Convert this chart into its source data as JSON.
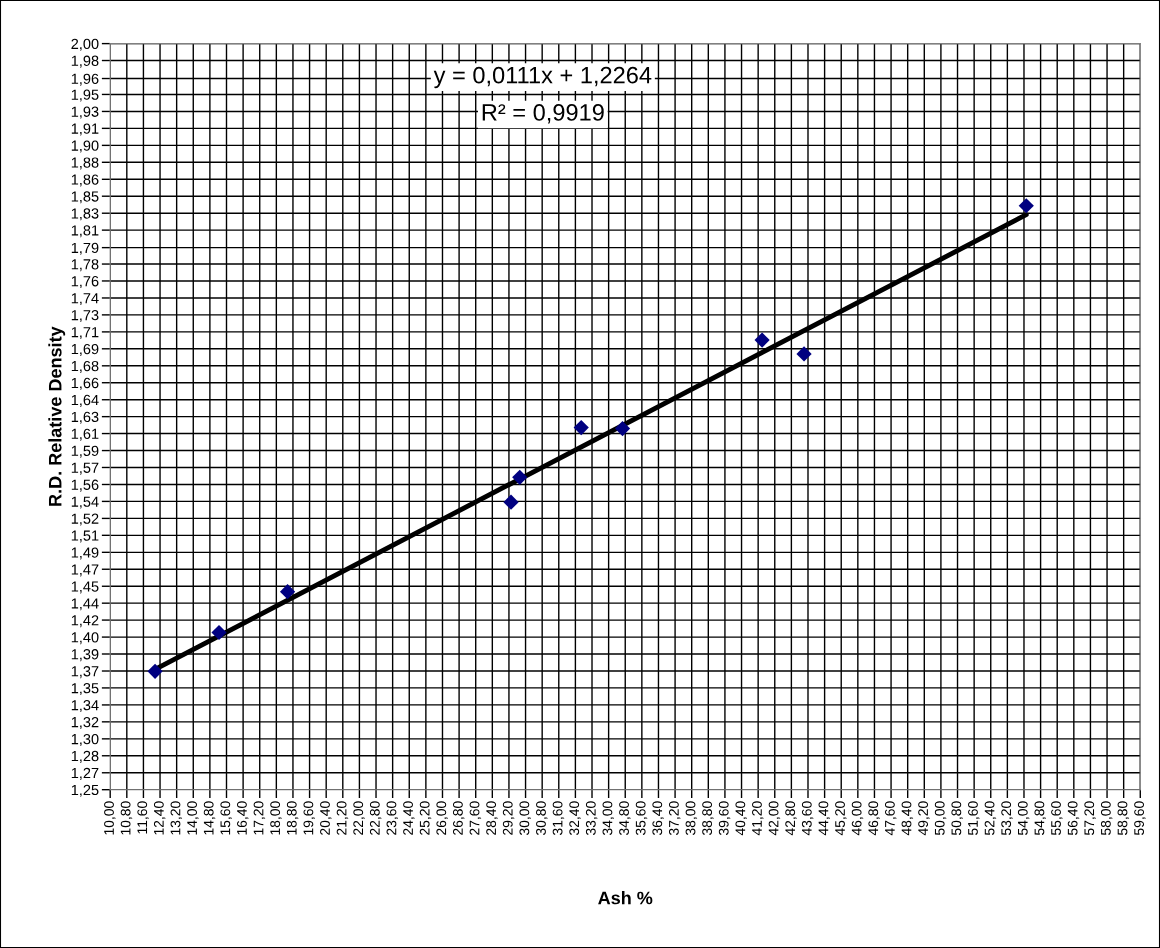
{
  "chart_data": {
    "type": "scatter",
    "xlabel": "Ash %",
    "ylabel": "R.D. Relative Density",
    "annotations": [
      "y = 0,0111x + 1,2264",
      "R² = 0,9919"
    ],
    "series": [
      {
        "color": "#000080",
        "marker": "diamond",
        "x": [
          12.16,
          15.24,
          18.54,
          29.3,
          29.72,
          32.68,
          34.67,
          41.39,
          43.41,
          54.11
        ],
        "values": [
          1.369,
          1.408,
          1.449,
          1.539,
          1.564,
          1.614,
          1.613,
          1.702,
          1.688,
          1.837
        ]
      },
      {
        "type": "line",
        "color": "#000000",
        "x": [
          12.16,
          54.11
        ],
        "values": [
          1.371,
          1.828
        ]
      }
    ],
    "xlim": [
      10.0,
      59.6
    ],
    "ylim": [
      1.25,
      2.0
    ],
    "xticks": [
      {
        "value": 10.0,
        "label": "10,00"
      },
      {
        "value": 10.8,
        "label": "10,80"
      },
      {
        "value": 11.6,
        "label": "11,60"
      },
      {
        "value": 12.4,
        "label": "12,40"
      },
      {
        "value": 13.2,
        "label": "13,20"
      },
      {
        "value": 14.0,
        "label": "14,00"
      },
      {
        "value": 14.8,
        "label": "14,80"
      },
      {
        "value": 15.6,
        "label": "15,60"
      },
      {
        "value": 16.4,
        "label": "16,40"
      },
      {
        "value": 17.2,
        "label": "17,20"
      },
      {
        "value": 18.0,
        "label": "18,00"
      },
      {
        "value": 18.8,
        "label": "18,80"
      },
      {
        "value": 19.6,
        "label": "19,60"
      },
      {
        "value": 20.4,
        "label": "20,40"
      },
      {
        "value": 21.2,
        "label": "21,20"
      },
      {
        "value": 22.0,
        "label": "22,00"
      },
      {
        "value": 22.8,
        "label": "22,80"
      },
      {
        "value": 23.6,
        "label": "23,60"
      },
      {
        "value": 24.4,
        "label": "24,40"
      },
      {
        "value": 25.2,
        "label": "25,20"
      },
      {
        "value": 26.0,
        "label": "26,00"
      },
      {
        "value": 26.8,
        "label": "26,80"
      },
      {
        "value": 27.6,
        "label": "27,60"
      },
      {
        "value": 28.4,
        "label": "28,40"
      },
      {
        "value": 29.2,
        "label": "29,20"
      },
      {
        "value": 30.0,
        "label": "30,00"
      },
      {
        "value": 30.8,
        "label": "30,80"
      },
      {
        "value": 31.6,
        "label": "31,60"
      },
      {
        "value": 32.4,
        "label": "32,40"
      },
      {
        "value": 33.2,
        "label": "33,20"
      },
      {
        "value": 34.0,
        "label": "34,00"
      },
      {
        "value": 34.8,
        "label": "34,80"
      },
      {
        "value": 35.6,
        "label": "35,60"
      },
      {
        "value": 36.4,
        "label": "36,40"
      },
      {
        "value": 37.2,
        "label": "37,20"
      },
      {
        "value": 38.0,
        "label": "38,00"
      },
      {
        "value": 38.8,
        "label": "38,80"
      },
      {
        "value": 39.6,
        "label": "39,60"
      },
      {
        "value": 40.4,
        "label": "40,40"
      },
      {
        "value": 41.2,
        "label": "41,20"
      },
      {
        "value": 42.0,
        "label": "42,00"
      },
      {
        "value": 42.8,
        "label": "42,80"
      },
      {
        "value": 43.6,
        "label": "43,60"
      },
      {
        "value": 44.4,
        "label": "44,40"
      },
      {
        "value": 45.2,
        "label": "45,20"
      },
      {
        "value": 46.0,
        "label": "46,00"
      },
      {
        "value": 46.8,
        "label": "46,80"
      },
      {
        "value": 47.6,
        "label": "47,60"
      },
      {
        "value": 48.4,
        "label": "48,40"
      },
      {
        "value": 49.2,
        "label": "49,20"
      },
      {
        "value": 50.0,
        "label": "50,00"
      },
      {
        "value": 50.8,
        "label": "50,80"
      },
      {
        "value": 51.6,
        "label": "51,60"
      },
      {
        "value": 52.4,
        "label": "52,40"
      },
      {
        "value": 53.2,
        "label": "53,20"
      },
      {
        "value": 54.0,
        "label": "54,00"
      },
      {
        "value": 54.8,
        "label": "54,80"
      },
      {
        "value": 55.6,
        "label": "55,60"
      },
      {
        "value": 56.4,
        "label": "56,40"
      },
      {
        "value": 57.2,
        "label": "57,20"
      },
      {
        "value": 58.0,
        "label": "58,00"
      },
      {
        "value": 58.8,
        "label": "58,80"
      },
      {
        "value": 59.6,
        "label": "59,60"
      }
    ],
    "yticks": [
      {
        "value": 1.25,
        "label": "1,25"
      },
      {
        "value": 1.267,
        "label": "1,27"
      },
      {
        "value": 1.2841,
        "label": "1,28"
      },
      {
        "value": 1.3011,
        "label": "1,30"
      },
      {
        "value": 1.3182,
        "label": "1,32"
      },
      {
        "value": 1.3352,
        "label": "1,34"
      },
      {
        "value": 1.3523,
        "label": "1,35"
      },
      {
        "value": 1.3693,
        "label": "1,37"
      },
      {
        "value": 1.3864,
        "label": "1,39"
      },
      {
        "value": 1.4034,
        "label": "1,40"
      },
      {
        "value": 1.4205,
        "label": "1,42"
      },
      {
        "value": 1.4375,
        "label": "1,44"
      },
      {
        "value": 1.4545,
        "label": "1,45"
      },
      {
        "value": 1.4716,
        "label": "1,47"
      },
      {
        "value": 1.4886,
        "label": "1,49"
      },
      {
        "value": 1.5057,
        "label": "1,51"
      },
      {
        "value": 1.5227,
        "label": "1,52"
      },
      {
        "value": 1.5398,
        "label": "1,54"
      },
      {
        "value": 1.5568,
        "label": "1,56"
      },
      {
        "value": 1.5739,
        "label": "1,57"
      },
      {
        "value": 1.5909,
        "label": "1,59"
      },
      {
        "value": 1.608,
        "label": "1,61"
      },
      {
        "value": 1.625,
        "label": "1,63"
      },
      {
        "value": 1.642,
        "label": "1,64"
      },
      {
        "value": 1.6591,
        "label": "1,66"
      },
      {
        "value": 1.6761,
        "label": "1,68"
      },
      {
        "value": 1.6932,
        "label": "1,69"
      },
      {
        "value": 1.7102,
        "label": "1,71"
      },
      {
        "value": 1.7273,
        "label": "1,73"
      },
      {
        "value": 1.7443,
        "label": "1,74"
      },
      {
        "value": 1.7614,
        "label": "1,76"
      },
      {
        "value": 1.7784,
        "label": "1,78"
      },
      {
        "value": 1.7949,
        "label": "1,79"
      },
      {
        "value": 1.8125,
        "label": "1,81"
      },
      {
        "value": 1.8295,
        "label": "1,83"
      },
      {
        "value": 1.8466,
        "label": "1,85"
      },
      {
        "value": 1.8636,
        "label": "1,86"
      },
      {
        "value": 1.8807,
        "label": "1,88"
      },
      {
        "value": 1.8977,
        "label": "1,90"
      },
      {
        "value": 1.9148,
        "label": "1,91"
      },
      {
        "value": 1.9318,
        "label": "1,93"
      },
      {
        "value": 1.9489,
        "label": "1,95"
      },
      {
        "value": 1.9649,
        "label": "1,96"
      },
      {
        "value": 1.983,
        "label": "1,98"
      },
      {
        "value": 2.0,
        "label": "2,00"
      }
    ],
    "grid": true,
    "legend": false
  }
}
